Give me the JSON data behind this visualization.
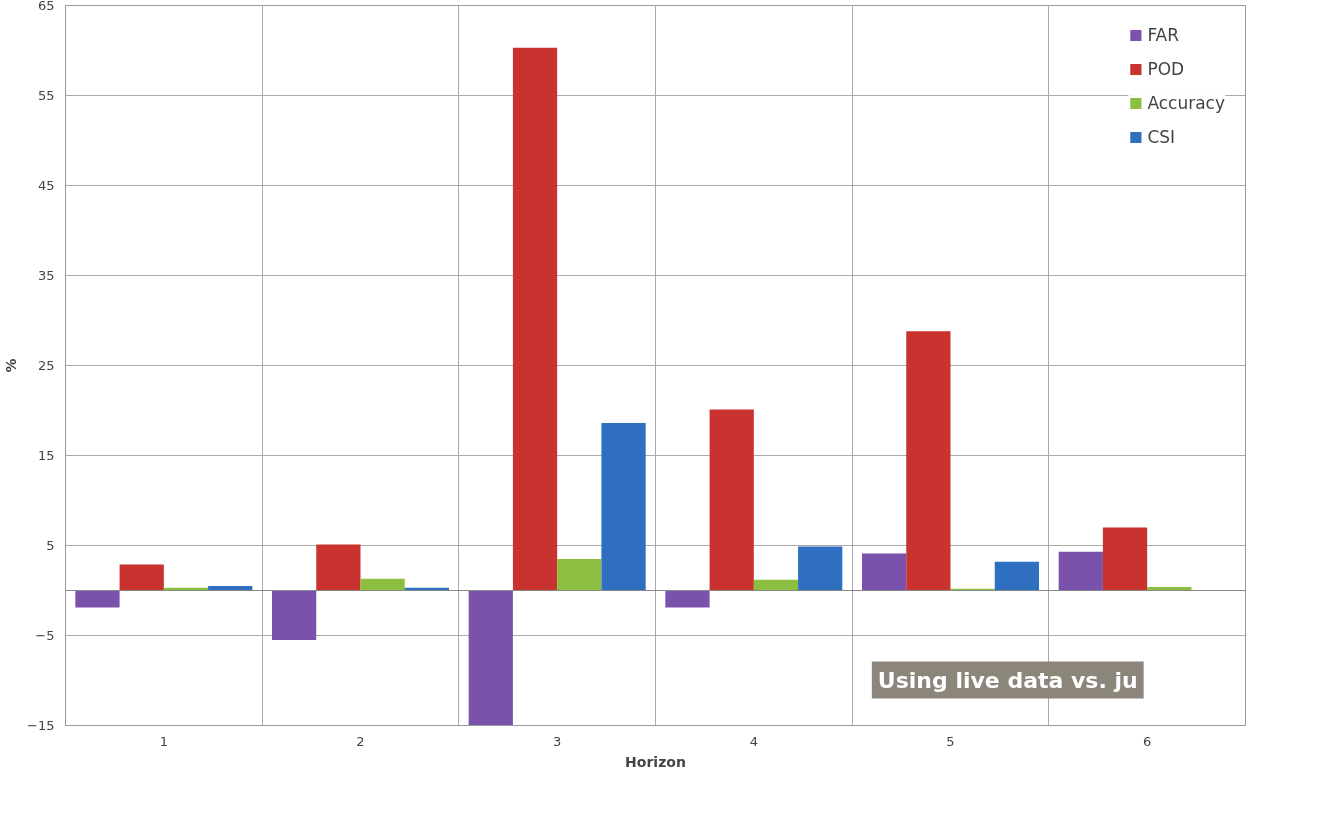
{
  "chart_data": {
    "type": "bar",
    "xlabel": "Horizon",
    "ylabel": "%",
    "categories": [
      "1",
      "2",
      "3",
      "4",
      "5",
      "6"
    ],
    "series": [
      {
        "name": "FAR",
        "color": "#7b52ab",
        "values": [
          -1.9,
          -5.5,
          -15,
          -1.9,
          4.1,
          4.3
        ]
      },
      {
        "name": "POD",
        "color": "#c8332f",
        "values": [
          2.9,
          5.1,
          60.3,
          20.1,
          28.8,
          7.0
        ]
      },
      {
        "name": "Accuracy",
        "color": "#8cbf3f",
        "values": [
          0.3,
          1.3,
          3.5,
          1.2,
          0.2,
          0.4
        ]
      },
      {
        "name": "CSI",
        "color": "#2f6fbf",
        "values": [
          0.5,
          0.3,
          18.6,
          4.9,
          3.2,
          null
        ]
      }
    ],
    "ylim": [
      -15,
      65
    ],
    "yticks": [
      -15,
      -5,
      5,
      15,
      25,
      35,
      45,
      55,
      65
    ],
    "grid": true,
    "legend": "top right",
    "annotations": [
      "Using live data vs. ju"
    ]
  }
}
